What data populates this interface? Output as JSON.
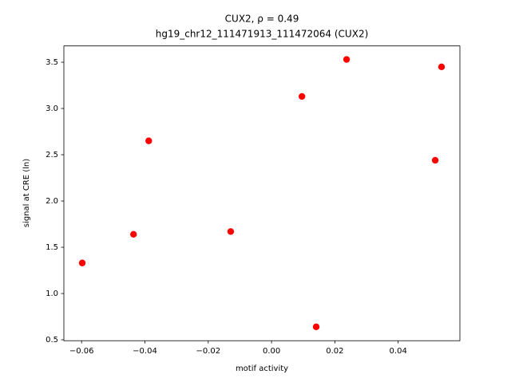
{
  "chart_data": {
    "type": "scatter",
    "title": "CUX2, ρ = 0.49",
    "subtitle": "hg19_chr12_111471913_111472064 (CUX2)",
    "x_label": "motif activity",
    "y_label": "signal at CRE (ln)",
    "color": "#ff0000",
    "x": [
      -0.0598,
      -0.0436,
      -0.0388,
      -0.0129,
      0.0096,
      0.0141,
      0.0237,
      0.0517,
      0.0537
    ],
    "values": [
      1.33,
      1.64,
      2.65,
      1.67,
      3.13,
      0.64,
      3.53,
      2.44,
      3.45
    ],
    "xlim": [
      -0.0656,
      0.0595
    ],
    "ylim": [
      0.49,
      3.676
    ],
    "xticks": [
      {
        "value": -0.06,
        "label": "−0.06"
      },
      {
        "value": -0.04,
        "label": "−0.04"
      },
      {
        "value": -0.02,
        "label": "−0.02"
      },
      {
        "value": 0,
        "label": "0.00"
      },
      0.02,
      0.04
    ],
    "yticks": [
      0.5,
      {
        "value": 1,
        "label": "1.0"
      },
      1.5,
      {
        "value": 2,
        "label": "2.0"
      },
      2.5,
      {
        "value": 3,
        "label": "3.0"
      },
      3.5
    ]
  }
}
